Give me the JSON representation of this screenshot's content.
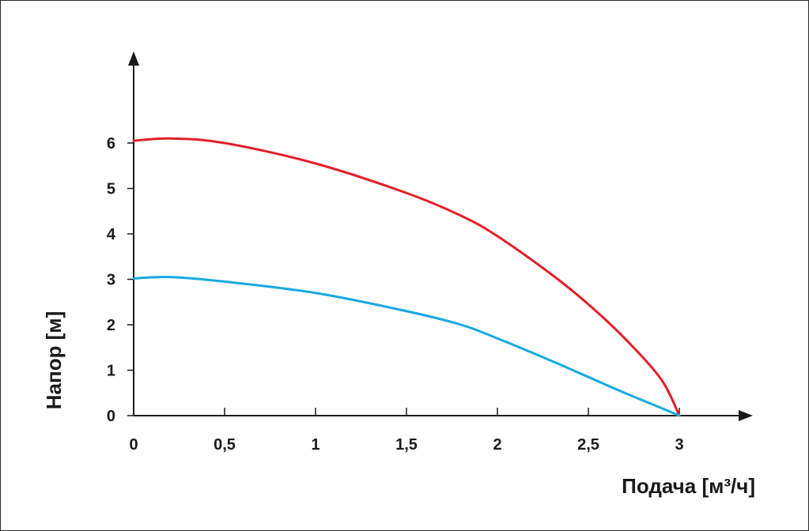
{
  "chart_data": {
    "type": "line",
    "xlabel": "Подача [м³/ч]",
    "ylabel": "Напор [м]",
    "xlim": [
      0,
      3
    ],
    "ylim": [
      0,
      6
    ],
    "xticks": [
      0,
      0.5,
      1,
      1.5,
      2,
      2.5,
      3
    ],
    "xtick_labels": [
      "0",
      "0,5",
      "1",
      "1,5",
      "2",
      "2,5",
      "3"
    ],
    "yticks": [
      0,
      1,
      2,
      3,
      4,
      5,
      6
    ],
    "ytick_labels": [
      "0",
      "1",
      "2",
      "3",
      "4",
      "5",
      "6"
    ],
    "grid": false,
    "series": [
      {
        "color": "#e2202a",
        "x": [
          0,
          0.2,
          0.5,
          1.0,
          1.5,
          1.8,
          2.0,
          2.3,
          2.5,
          2.7,
          2.9,
          3.0
        ],
        "y": [
          6.05,
          6.1,
          6.0,
          5.55,
          4.9,
          4.4,
          3.95,
          3.1,
          2.45,
          1.7,
          0.8,
          0
        ]
      },
      {
        "color": "#16a9e1",
        "x": [
          0,
          0.2,
          0.5,
          1.0,
          1.5,
          1.8,
          2.0,
          2.3,
          2.5,
          2.7,
          2.9,
          3.0
        ],
        "y": [
          3.02,
          3.05,
          2.95,
          2.7,
          2.3,
          2.0,
          1.7,
          1.2,
          0.85,
          0.5,
          0.17,
          0
        ]
      }
    ]
  }
}
